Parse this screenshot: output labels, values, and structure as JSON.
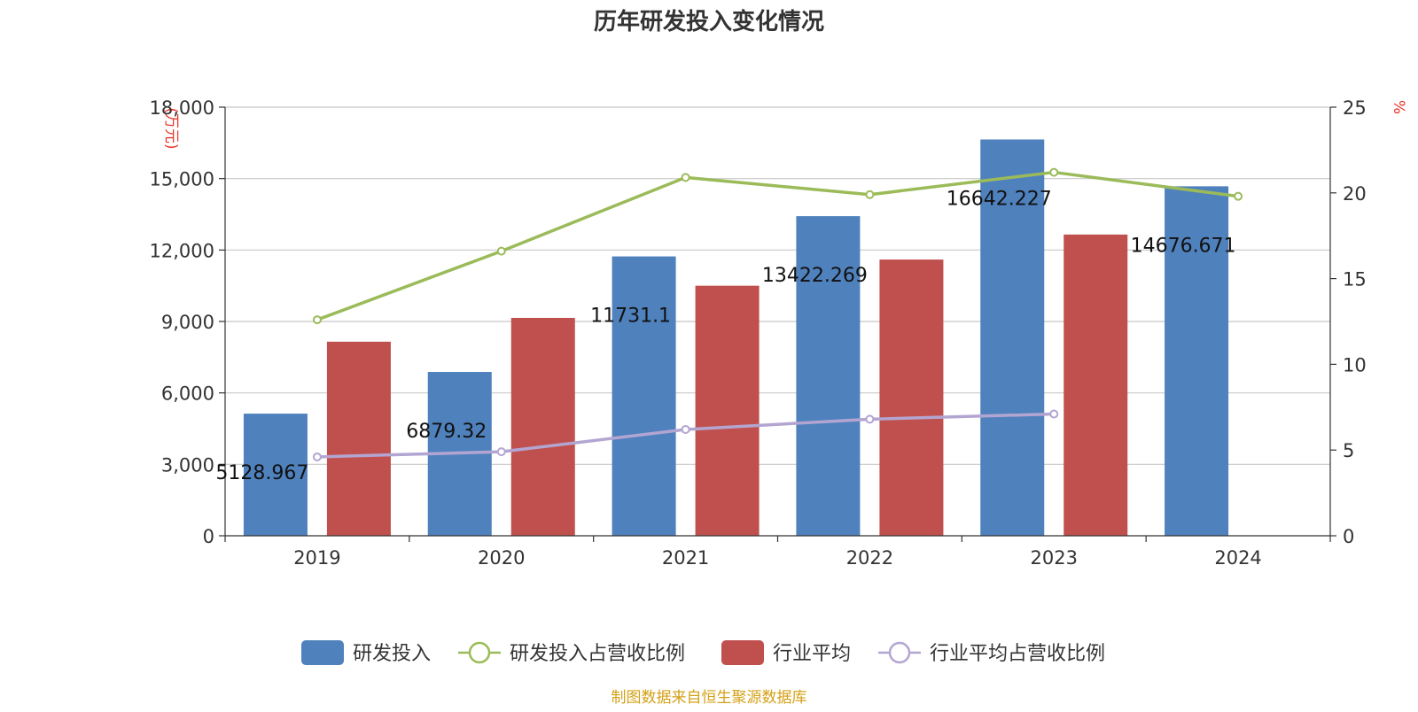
{
  "chart_data": {
    "type": "bar",
    "title": "历年研发投入变化情况",
    "y_left_unit": "(万元)",
    "y_right_unit": "%",
    "categories": [
      "2019",
      "2020",
      "2021",
      "2022",
      "2023",
      "2024"
    ],
    "ylim_left": [
      0,
      18000
    ],
    "yticks_left": [
      "0",
      "3,000",
      "6,000",
      "9,000",
      "12,000",
      "15,000",
      "18,000"
    ],
    "ylim_right": [
      0,
      25
    ],
    "yticks_right": [
      "0",
      "5",
      "10",
      "15",
      "20",
      "25"
    ],
    "grid": true,
    "legend_position": "bottom",
    "series": [
      {
        "name": "研发投入",
        "kind": "bar",
        "axis": "left",
        "color": "#4f81bd",
        "values": [
          5128.967,
          6879.32,
          11731.1,
          13422.269,
          16642.227,
          14676.671
        ],
        "labels": [
          "5128.967",
          "6879.32",
          "11731.1",
          "13422.269",
          "16642.227",
          "14676.671"
        ]
      },
      {
        "name": "研发投入占营收比例",
        "kind": "line",
        "axis": "right",
        "color": "#9bbb59",
        "values": [
          12.6,
          16.6,
          20.9,
          19.9,
          21.2,
          19.8
        ]
      },
      {
        "name": "行业平均",
        "kind": "bar",
        "axis": "left",
        "color": "#c0504d",
        "values": [
          8150,
          9150,
          10500,
          11600,
          12650,
          null
        ]
      },
      {
        "name": "行业平均占营收比例",
        "kind": "line",
        "axis": "right",
        "color": "#b3a5d1",
        "values": [
          4.6,
          4.9,
          6.2,
          6.8,
          7.1,
          null
        ]
      }
    ]
  },
  "footer": {
    "source": "制图数据来自恒生聚源数据库",
    "source_color": "#d4a017"
  }
}
